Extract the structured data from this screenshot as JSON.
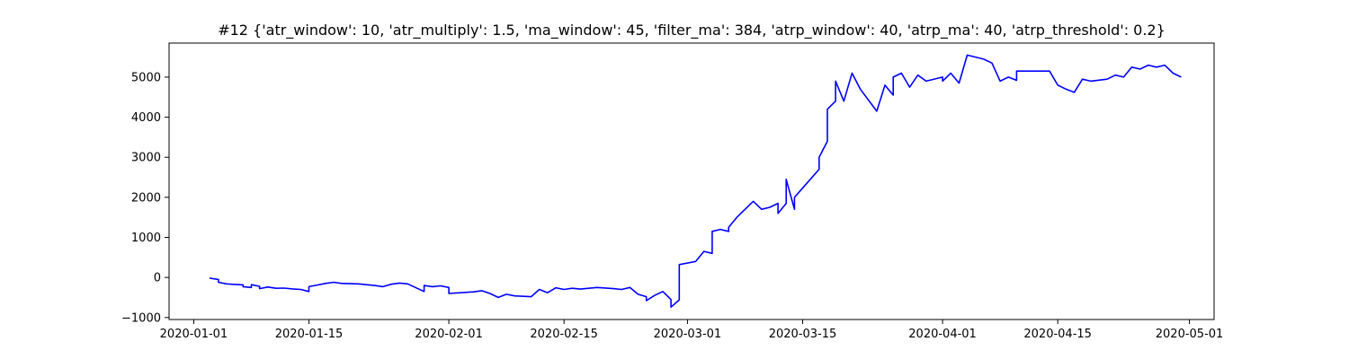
{
  "chart_data": {
    "type": "line",
    "title": "#12 {'atr_window': 10, 'atr_multiply': 1.5, 'ma_window': 45, 'filter_ma': 384, 'atrp_window': 40, 'atrp_ma': 40, 'atrp_threshold': 0.2}",
    "xlabel": "",
    "ylabel": "",
    "grid": false,
    "line_color": "#0000ff",
    "xlim": [
      "2019-12-29",
      "2020-05-04"
    ],
    "ylim": [
      -1050,
      5850
    ],
    "xticks": [
      "2020-01-01",
      "2020-01-15",
      "2020-02-01",
      "2020-02-15",
      "2020-03-01",
      "2020-03-15",
      "2020-04-01",
      "2020-04-15",
      "2020-05-01"
    ],
    "yticks": [
      -1000,
      0,
      1000,
      2000,
      3000,
      4000,
      5000
    ],
    "ytick_labels": [
      "−1000",
      "0",
      "1000",
      "2000",
      "3000",
      "4000",
      "5000"
    ],
    "series": [
      {
        "values": [
          [
            "2020-01-03",
            0
          ],
          [
            "2020-01-03",
            -20
          ],
          [
            "2020-01-04",
            -50
          ],
          [
            "2020-01-04",
            -120
          ],
          [
            "2020-01-05",
            -160
          ],
          [
            "2020-01-06",
            -175
          ],
          [
            "2020-01-07",
            -185
          ],
          [
            "2020-01-07",
            -230
          ],
          [
            "2020-01-08",
            -250
          ],
          [
            "2020-01-08",
            -180
          ],
          [
            "2020-01-09",
            -220
          ],
          [
            "2020-01-09",
            -280
          ],
          [
            "2020-01-10",
            -240
          ],
          [
            "2020-01-11",
            -270
          ],
          [
            "2020-01-12",
            -265
          ],
          [
            "2020-01-13",
            -285
          ],
          [
            "2020-01-14",
            -300
          ],
          [
            "2020-01-15",
            -350
          ],
          [
            "2020-01-15",
            -230
          ],
          [
            "2020-01-16",
            -190
          ],
          [
            "2020-01-17",
            -150
          ],
          [
            "2020-01-18",
            -120
          ],
          [
            "2020-01-19",
            -150
          ],
          [
            "2020-01-21",
            -160
          ],
          [
            "2020-01-23",
            -200
          ],
          [
            "2020-01-24",
            -230
          ],
          [
            "2020-01-25",
            -170
          ],
          [
            "2020-01-26",
            -140
          ],
          [
            "2020-01-27",
            -160
          ],
          [
            "2020-01-29",
            -350
          ],
          [
            "2020-01-29",
            -200
          ],
          [
            "2020-01-30",
            -230
          ],
          [
            "2020-01-31",
            -210
          ],
          [
            "2020-02-01",
            -250
          ],
          [
            "2020-02-01",
            -400
          ],
          [
            "2020-02-04",
            -360
          ],
          [
            "2020-02-05",
            -330
          ],
          [
            "2020-02-06",
            -400
          ],
          [
            "2020-02-07",
            -500
          ],
          [
            "2020-02-08",
            -420
          ],
          [
            "2020-02-09",
            -460
          ],
          [
            "2020-02-11",
            -480
          ],
          [
            "2020-02-12",
            -300
          ],
          [
            "2020-02-13",
            -380
          ],
          [
            "2020-02-14",
            -260
          ],
          [
            "2020-02-15",
            -300
          ],
          [
            "2020-02-16",
            -270
          ],
          [
            "2020-02-17",
            -290
          ],
          [
            "2020-02-19",
            -250
          ],
          [
            "2020-02-21",
            -280
          ],
          [
            "2020-02-22",
            -300
          ],
          [
            "2020-02-23",
            -250
          ],
          [
            "2020-02-24",
            -420
          ],
          [
            "2020-02-25",
            -480
          ],
          [
            "2020-02-25",
            -580
          ],
          [
            "2020-02-26",
            -450
          ],
          [
            "2020-02-27",
            -350
          ],
          [
            "2020-02-28",
            -550
          ],
          [
            "2020-02-28",
            -740
          ],
          [
            "2020-02-29",
            -560
          ],
          [
            "2020-02-29",
            -200
          ],
          [
            "2020-02-29",
            320
          ],
          [
            "2020-03-02",
            400
          ],
          [
            "2020-03-03",
            650
          ],
          [
            "2020-03-04",
            600
          ],
          [
            "2020-03-04",
            1150
          ],
          [
            "2020-03-05",
            1200
          ],
          [
            "2020-03-06",
            1150
          ],
          [
            "2020-03-06",
            1250
          ],
          [
            "2020-03-07",
            1500
          ],
          [
            "2020-03-09",
            1900
          ],
          [
            "2020-03-10",
            1700
          ],
          [
            "2020-03-11",
            1750
          ],
          [
            "2020-03-12",
            1850
          ],
          [
            "2020-03-12",
            1600
          ],
          [
            "2020-03-13",
            1850
          ],
          [
            "2020-03-13",
            2450
          ],
          [
            "2020-03-14",
            1700
          ],
          [
            "2020-03-14",
            2000
          ],
          [
            "2020-03-17",
            2700
          ],
          [
            "2020-03-17",
            3000
          ],
          [
            "2020-03-18",
            3400
          ],
          [
            "2020-03-18",
            4200
          ],
          [
            "2020-03-19",
            4400
          ],
          [
            "2020-03-19",
            4900
          ],
          [
            "2020-03-20",
            4400
          ],
          [
            "2020-03-21",
            5100
          ],
          [
            "2020-03-22",
            4700
          ],
          [
            "2020-03-24",
            4150
          ],
          [
            "2020-03-25",
            4800
          ],
          [
            "2020-03-26",
            4550
          ],
          [
            "2020-03-26",
            5000
          ],
          [
            "2020-03-27",
            5100
          ],
          [
            "2020-03-28",
            4750
          ],
          [
            "2020-03-29",
            5050
          ],
          [
            "2020-03-30",
            4900
          ],
          [
            "2020-04-01",
            5000
          ],
          [
            "2020-04-01",
            4900
          ],
          [
            "2020-04-02",
            5100
          ],
          [
            "2020-04-03",
            4850
          ],
          [
            "2020-04-04",
            5550
          ],
          [
            "2020-04-05",
            5500
          ],
          [
            "2020-04-06",
            5450
          ],
          [
            "2020-04-07",
            5350
          ],
          [
            "2020-04-08",
            4900
          ],
          [
            "2020-04-09",
            5000
          ],
          [
            "2020-04-10",
            4920
          ],
          [
            "2020-04-10",
            5150
          ],
          [
            "2020-04-14",
            5150
          ],
          [
            "2020-04-15",
            4800
          ],
          [
            "2020-04-16",
            4700
          ],
          [
            "2020-04-17",
            4620
          ],
          [
            "2020-04-18",
            4950
          ],
          [
            "2020-04-19",
            4900
          ],
          [
            "2020-04-21",
            4950
          ],
          [
            "2020-04-22",
            5050
          ],
          [
            "2020-04-23",
            5000
          ],
          [
            "2020-04-24",
            5250
          ],
          [
            "2020-04-25",
            5200
          ],
          [
            "2020-04-26",
            5300
          ],
          [
            "2020-04-27",
            5250
          ],
          [
            "2020-04-28",
            5300
          ],
          [
            "2020-04-29",
            5100
          ],
          [
            "2020-04-30",
            5000
          ]
        ]
      }
    ]
  }
}
